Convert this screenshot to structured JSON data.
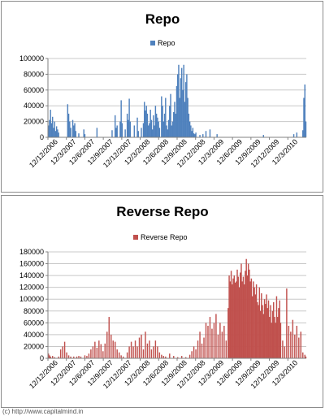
{
  "footer": {
    "credit": "(c) http://www.capitalmind.in"
  },
  "colors": {
    "repo": "#4f81bd",
    "reverse_repo": "#c0504d",
    "grid": "#c8c8c8",
    "axis": "#808080"
  },
  "chart_data": [
    {
      "type": "bar",
      "title": "Repo",
      "legend": {
        "entries": [
          "Repo"
        ],
        "placement": "top-right"
      },
      "series": [
        {
          "name": "Repo"
        }
      ],
      "ylim": [
        0,
        100000
      ],
      "yticks": [
        0,
        20000,
        40000,
        60000,
        80000,
        100000
      ],
      "grid": true,
      "xtick_labels": [
        "12/12/2006",
        "12/3/2007",
        "12/6/2007",
        "12/9/2007",
        "12/12/2007",
        "12/3/2008",
        "12/6/2008",
        "12/9/2008",
        "12/12/2008",
        "12/3/2009",
        "12/6/2009",
        "12/9/2009",
        "12/12/2009",
        "12/3/2010"
      ],
      "bar_values": [
        [
          0,
          15000
        ],
        [
          1,
          22000
        ],
        [
          2,
          35000
        ],
        [
          3,
          18000
        ],
        [
          4,
          26000
        ],
        [
          5,
          12000
        ],
        [
          6,
          20000
        ],
        [
          7,
          8000
        ],
        [
          8,
          14000
        ],
        [
          9,
          10000
        ],
        [
          10,
          6000
        ],
        [
          19,
          42000
        ],
        [
          20,
          30000
        ],
        [
          21,
          20000
        ],
        [
          22,
          12000
        ],
        [
          24,
          22000
        ],
        [
          25,
          15000
        ],
        [
          26,
          18000
        ],
        [
          27,
          8000
        ],
        [
          30,
          5000
        ],
        [
          35,
          10000
        ],
        [
          36,
          4000
        ],
        [
          48,
          12000
        ],
        [
          63,
          9000
        ],
        [
          66,
          28000
        ],
        [
          67,
          12000
        ],
        [
          68,
          15000
        ],
        [
          71,
          20000
        ],
        [
          72,
          47000
        ],
        [
          73,
          18000
        ],
        [
          76,
          10000
        ],
        [
          78,
          30000
        ],
        [
          79,
          22000
        ],
        [
          80,
          49000
        ],
        [
          81,
          20000
        ],
        [
          85,
          15000
        ],
        [
          88,
          25000
        ],
        [
          89,
          8000
        ],
        [
          92,
          12000
        ],
        [
          94,
          18000
        ],
        [
          95,
          45000
        ],
        [
          96,
          34000
        ],
        [
          97,
          40000
        ],
        [
          98,
          30000
        ],
        [
          99,
          15000
        ],
        [
          100,
          18000
        ],
        [
          101,
          35000
        ],
        [
          102,
          22000
        ],
        [
          103,
          10000
        ],
        [
          104,
          28000
        ],
        [
          105,
          15000
        ],
        [
          106,
          40000
        ],
        [
          107,
          30000
        ],
        [
          108,
          25000
        ],
        [
          109,
          20000
        ],
        [
          110,
          12000
        ],
        [
          112,
          52000
        ],
        [
          113,
          40000
        ],
        [
          114,
          20000
        ],
        [
          115,
          30000
        ],
        [
          116,
          50000
        ],
        [
          117,
          15000
        ],
        [
          118,
          10000
        ],
        [
          119,
          22000
        ],
        [
          120,
          40000
        ],
        [
          121,
          55000
        ],
        [
          122,
          15000
        ],
        [
          123,
          20000
        ],
        [
          124,
          32000
        ],
        [
          125,
          45000
        ],
        [
          126,
          30000
        ],
        [
          127,
          65000
        ],
        [
          128,
          80000
        ],
        [
          129,
          92000
        ],
        [
          130,
          50000
        ],
        [
          131,
          75000
        ],
        [
          132,
          88000
        ],
        [
          133,
          60000
        ],
        [
          134,
          92000
        ],
        [
          135,
          45000
        ],
        [
          136,
          70000
        ],
        [
          137,
          80000
        ],
        [
          138,
          50000
        ],
        [
          139,
          30000
        ],
        [
          140,
          20000
        ],
        [
          141,
          15000
        ],
        [
          142,
          8000
        ],
        [
          143,
          12000
        ],
        [
          144,
          5000
        ],
        [
          145,
          4000
        ],
        [
          146,
          6000
        ],
        [
          150,
          3000
        ],
        [
          153,
          4000
        ],
        [
          156,
          8000
        ],
        [
          160,
          10000
        ],
        [
          167,
          4000
        ],
        [
          213,
          3000
        ],
        [
          243,
          4000
        ],
        [
          246,
          6000
        ],
        [
          252,
          9000
        ],
        [
          253,
          50000
        ],
        [
          254,
          67000
        ],
        [
          255,
          20000
        ]
      ],
      "bar_slots": 256
    },
    {
      "type": "bar",
      "title": "Reverse Repo",
      "legend": {
        "entries": [
          "Reverse Repo"
        ],
        "placement": "top-left"
      },
      "series": [
        {
          "name": "Reverse Repo"
        }
      ],
      "ylim": [
        0,
        180000
      ],
      "yticks": [
        0,
        20000,
        40000,
        60000,
        80000,
        100000,
        120000,
        140000,
        160000,
        180000
      ],
      "grid": true,
      "xtick_labels": [
        "12/12/2006",
        "12/3/2007",
        "12/6/2007",
        "12/9/2007",
        "12/12/2007",
        "12/3/2008",
        "12/6/2008",
        "12/9/2008",
        "12/12/2008",
        "12/3/2009",
        "12/6/2009",
        "12/9/2009",
        "12/12/2009",
        "12/3/2010"
      ],
      "bar_values": [
        [
          0,
          8000
        ],
        [
          1,
          5000
        ],
        [
          2,
          3000
        ],
        [
          4,
          4000
        ],
        [
          6,
          2000
        ],
        [
          10,
          3000
        ],
        [
          12,
          15000
        ],
        [
          14,
          20000
        ],
        [
          16,
          28000
        ],
        [
          18,
          10000
        ],
        [
          20,
          5000
        ],
        [
          22,
          3000
        ],
        [
          25,
          3000
        ],
        [
          28,
          3000
        ],
        [
          30,
          4000
        ],
        [
          32,
          3000
        ],
        [
          36,
          5000
        ],
        [
          38,
          4000
        ],
        [
          40,
          8000
        ],
        [
          42,
          15000
        ],
        [
          44,
          20000
        ],
        [
          46,
          28000
        ],
        [
          48,
          18000
        ],
        [
          50,
          30000
        ],
        [
          52,
          24000
        ],
        [
          54,
          12000
        ],
        [
          56,
          25000
        ],
        [
          58,
          45000
        ],
        [
          60,
          70000
        ],
        [
          62,
          40000
        ],
        [
          64,
          30000
        ],
        [
          66,
          28000
        ],
        [
          68,
          15000
        ],
        [
          70,
          10000
        ],
        [
          72,
          5000
        ],
        [
          74,
          3000
        ],
        [
          78,
          10000
        ],
        [
          80,
          20000
        ],
        [
          82,
          28000
        ],
        [
          84,
          20000
        ],
        [
          86,
          30000
        ],
        [
          88,
          20000
        ],
        [
          90,
          35000
        ],
        [
          92,
          40000
        ],
        [
          94,
          15000
        ],
        [
          96,
          45000
        ],
        [
          98,
          25000
        ],
        [
          100,
          30000
        ],
        [
          102,
          15000
        ],
        [
          104,
          20000
        ],
        [
          106,
          30000
        ],
        [
          108,
          20000
        ],
        [
          110,
          10000
        ],
        [
          112,
          6000
        ],
        [
          114,
          4000
        ],
        [
          116,
          3000
        ],
        [
          120,
          8000
        ],
        [
          124,
          4000
        ],
        [
          128,
          2000
        ],
        [
          132,
          4000
        ],
        [
          136,
          2000
        ],
        [
          140,
          6000
        ],
        [
          142,
          12000
        ],
        [
          144,
          20000
        ],
        [
          146,
          15000
        ],
        [
          148,
          30000
        ],
        [
          150,
          45000
        ],
        [
          152,
          25000
        ],
        [
          154,
          35000
        ],
        [
          156,
          60000
        ],
        [
          158,
          55000
        ],
        [
          160,
          70000
        ],
        [
          162,
          50000
        ],
        [
          164,
          60000
        ],
        [
          166,
          75000
        ],
        [
          168,
          40000
        ],
        [
          170,
          60000
        ],
        [
          172,
          45000
        ],
        [
          174,
          55000
        ],
        [
          176,
          30000
        ],
        [
          178,
          85000
        ],
        [
          179,
          140000
        ],
        [
          180,
          130000
        ],
        [
          181,
          148000
        ],
        [
          182,
          125000
        ],
        [
          183,
          135000
        ],
        [
          184,
          140000
        ],
        [
          185,
          128000
        ],
        [
          186,
          130000
        ],
        [
          187,
          150000
        ],
        [
          188,
          138000
        ],
        [
          189,
          120000
        ],
        [
          190,
          145000
        ],
        [
          191,
          160000
        ],
        [
          192,
          130000
        ],
        [
          193,
          138000
        ],
        [
          194,
          125000
        ],
        [
          195,
          148000
        ],
        [
          196,
          168000
        ],
        [
          197,
          140000
        ],
        [
          198,
          160000
        ],
        [
          199,
          150000
        ],
        [
          200,
          130000
        ],
        [
          201,
          135000
        ],
        [
          202,
          105000
        ],
        [
          203,
          130000
        ],
        [
          204,
          120000
        ],
        [
          205,
          108000
        ],
        [
          206,
          125000
        ],
        [
          207,
          95000
        ],
        [
          208,
          90000
        ],
        [
          209,
          120000
        ],
        [
          210,
          80000
        ],
        [
          211,
          110000
        ],
        [
          212,
          90000
        ],
        [
          213,
          75000
        ],
        [
          214,
          100000
        ],
        [
          215,
          92000
        ],
        [
          216,
          108000
        ],
        [
          217,
          85000
        ],
        [
          218,
          98000
        ],
        [
          219,
          70000
        ],
        [
          220,
          90000
        ],
        [
          221,
          60000
        ],
        [
          222,
          80000
        ],
        [
          223,
          95000
        ],
        [
          224,
          70000
        ],
        [
          225,
          60000
        ],
        [
          226,
          105000
        ],
        [
          227,
          70000
        ],
        [
          228,
          85000
        ],
        [
          229,
          98000
        ],
        [
          230,
          60000
        ],
        [
          232,
          30000
        ],
        [
          234,
          20000
        ],
        [
          236,
          118000
        ],
        [
          238,
          55000
        ],
        [
          240,
          45000
        ],
        [
          242,
          65000
        ],
        [
          244,
          40000
        ],
        [
          246,
          55000
        ],
        [
          248,
          35000
        ],
        [
          250,
          45000
        ],
        [
          252,
          10000
        ],
        [
          254,
          6000
        ],
        [
          255,
          3000
        ]
      ],
      "bar_slots": 256
    }
  ]
}
